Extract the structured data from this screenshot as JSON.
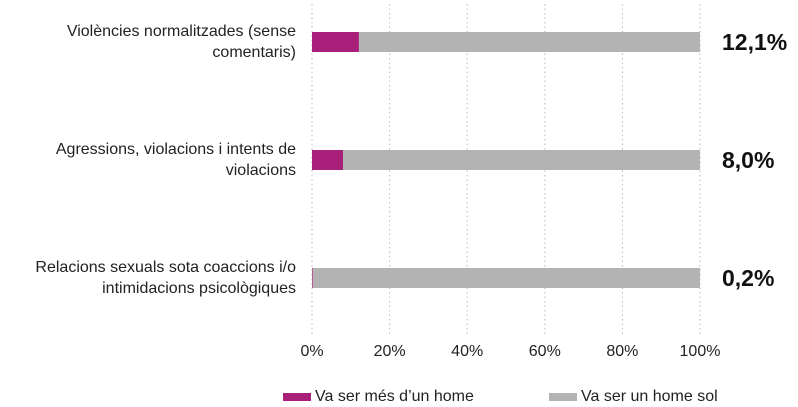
{
  "chart_data": {
    "type": "stacked_barh",
    "categories": [
      "Violències normalitzades (sense comentaris)",
      "Agressions, violacions i intents de violacions",
      "Relacions sexuals sota coaccions i/o intimidacions psicològiques"
    ],
    "series": [
      {
        "name": "Va ser més d’un home",
        "color": "#a8207a",
        "values": [
          12.1,
          8.0,
          0.2
        ],
        "value_labels": [
          "12,1%",
          "8,0%",
          "0,2%"
        ]
      },
      {
        "name": "Va ser un home sol",
        "color": "#b3b3b3",
        "values": [
          87.9,
          92.0,
          99.8
        ]
      }
    ],
    "xlim": [
      0,
      100
    ],
    "xticks": [
      {
        "value": 0,
        "label": "0%"
      },
      {
        "value": 20,
        "label": "20%"
      },
      {
        "value": 40,
        "label": "40%"
      },
      {
        "value": 60,
        "label": "60%"
      },
      {
        "value": 80,
        "label": "80%"
      },
      {
        "value": 100,
        "label": "100%"
      }
    ],
    "grid": true,
    "legend": "bottom"
  }
}
